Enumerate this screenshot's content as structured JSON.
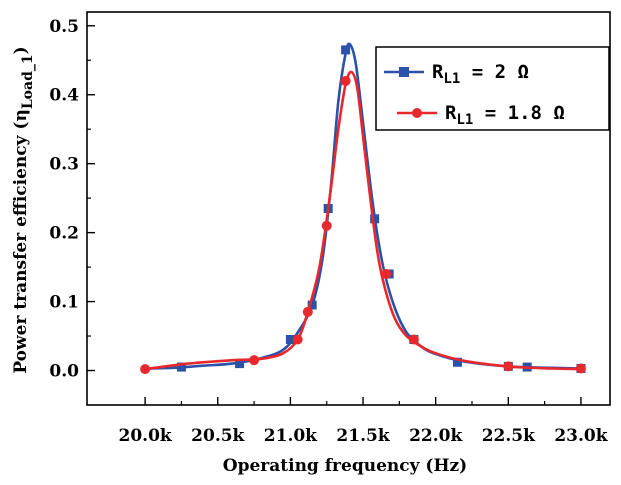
{
  "chart_data": {
    "type": "line",
    "title": "",
    "xlabel": "Operating frequency (Hz)",
    "ylabel": "Power transfer efficiency (η",
    "ylabel_sub": "Load_1",
    "ylabel_end": ")",
    "xlim": [
      19.6,
      23.2
    ],
    "ylim": [
      -0.05,
      0.52
    ],
    "x_ticks": [
      20.0,
      20.5,
      21.0,
      21.5,
      22.0,
      22.5,
      23.0
    ],
    "x_tick_labels": [
      "20.0k",
      "20.5k",
      "21.0k",
      "21.5k",
      "22.0k",
      "22.5k",
      "23.0k"
    ],
    "y_ticks": [
      0.0,
      0.1,
      0.2,
      0.3,
      0.4,
      0.5
    ],
    "y_tick_labels": [
      "0.0",
      "0.1",
      "0.2",
      "0.3",
      "0.4",
      "0.5"
    ],
    "grid": false,
    "legend_position": "top-right",
    "series": [
      {
        "name": "R",
        "name_sub": "L1",
        "name_suffix": " = 2 Ω",
        "color": "#2a52a8",
        "marker": "square",
        "points": [
          [
            20.25,
            0.005
          ],
          [
            20.65,
            0.01
          ],
          [
            21.0,
            0.045
          ],
          [
            21.15,
            0.095
          ],
          [
            21.26,
            0.235
          ],
          [
            21.38,
            0.465
          ],
          [
            21.58,
            0.22
          ],
          [
            21.68,
            0.14
          ],
          [
            21.85,
            0.045
          ],
          [
            22.15,
            0.012
          ],
          [
            22.5,
            0.006
          ],
          [
            22.63,
            0.005
          ],
          [
            23.0,
            0.003
          ]
        ],
        "curve": [
          [
            20.0,
            0.003
          ],
          [
            20.2,
            0.004
          ],
          [
            20.4,
            0.007
          ],
          [
            20.6,
            0.01
          ],
          [
            20.8,
            0.018
          ],
          [
            20.95,
            0.03
          ],
          [
            21.05,
            0.055
          ],
          [
            21.15,
            0.095
          ],
          [
            21.22,
            0.16
          ],
          [
            21.28,
            0.27
          ],
          [
            21.33,
            0.39
          ],
          [
            21.38,
            0.46
          ],
          [
            21.41,
            0.473
          ],
          [
            21.45,
            0.445
          ],
          [
            21.5,
            0.36
          ],
          [
            21.55,
            0.27
          ],
          [
            21.6,
            0.195
          ],
          [
            21.65,
            0.14
          ],
          [
            21.72,
            0.09
          ],
          [
            21.8,
            0.055
          ],
          [
            21.9,
            0.035
          ],
          [
            22.0,
            0.024
          ],
          [
            22.2,
            0.013
          ],
          [
            22.5,
            0.006
          ],
          [
            22.8,
            0.004
          ],
          [
            23.0,
            0.003
          ]
        ]
      },
      {
        "name": "R",
        "name_sub": "L1",
        "name_suffix": " = 1.8 Ω",
        "color": "#e8282c",
        "marker": "circle",
        "points": [
          [
            20.0,
            0.002
          ],
          [
            20.75,
            0.015
          ],
          [
            21.05,
            0.045
          ],
          [
            21.12,
            0.085
          ],
          [
            21.25,
            0.21
          ],
          [
            21.38,
            0.42
          ],
          [
            21.66,
            0.14
          ],
          [
            21.85,
            0.045
          ],
          [
            22.5,
            0.006
          ],
          [
            23.0,
            0.003
          ]
        ],
        "curve": [
          [
            20.0,
            0.002
          ],
          [
            20.3,
            0.01
          ],
          [
            20.6,
            0.015
          ],
          [
            20.8,
            0.017
          ],
          [
            20.95,
            0.025
          ],
          [
            21.05,
            0.045
          ],
          [
            21.12,
            0.085
          ],
          [
            21.2,
            0.15
          ],
          [
            21.27,
            0.25
          ],
          [
            21.33,
            0.35
          ],
          [
            21.38,
            0.415
          ],
          [
            21.42,
            0.433
          ],
          [
            21.46,
            0.41
          ],
          [
            21.5,
            0.34
          ],
          [
            21.55,
            0.25
          ],
          [
            21.6,
            0.17
          ],
          [
            21.65,
            0.12
          ],
          [
            21.72,
            0.075
          ],
          [
            21.8,
            0.05
          ],
          [
            21.9,
            0.035
          ],
          [
            22.0,
            0.025
          ],
          [
            22.2,
            0.014
          ],
          [
            22.5,
            0.006
          ],
          [
            22.8,
            0.003
          ],
          [
            23.0,
            0.002
          ]
        ]
      }
    ]
  }
}
